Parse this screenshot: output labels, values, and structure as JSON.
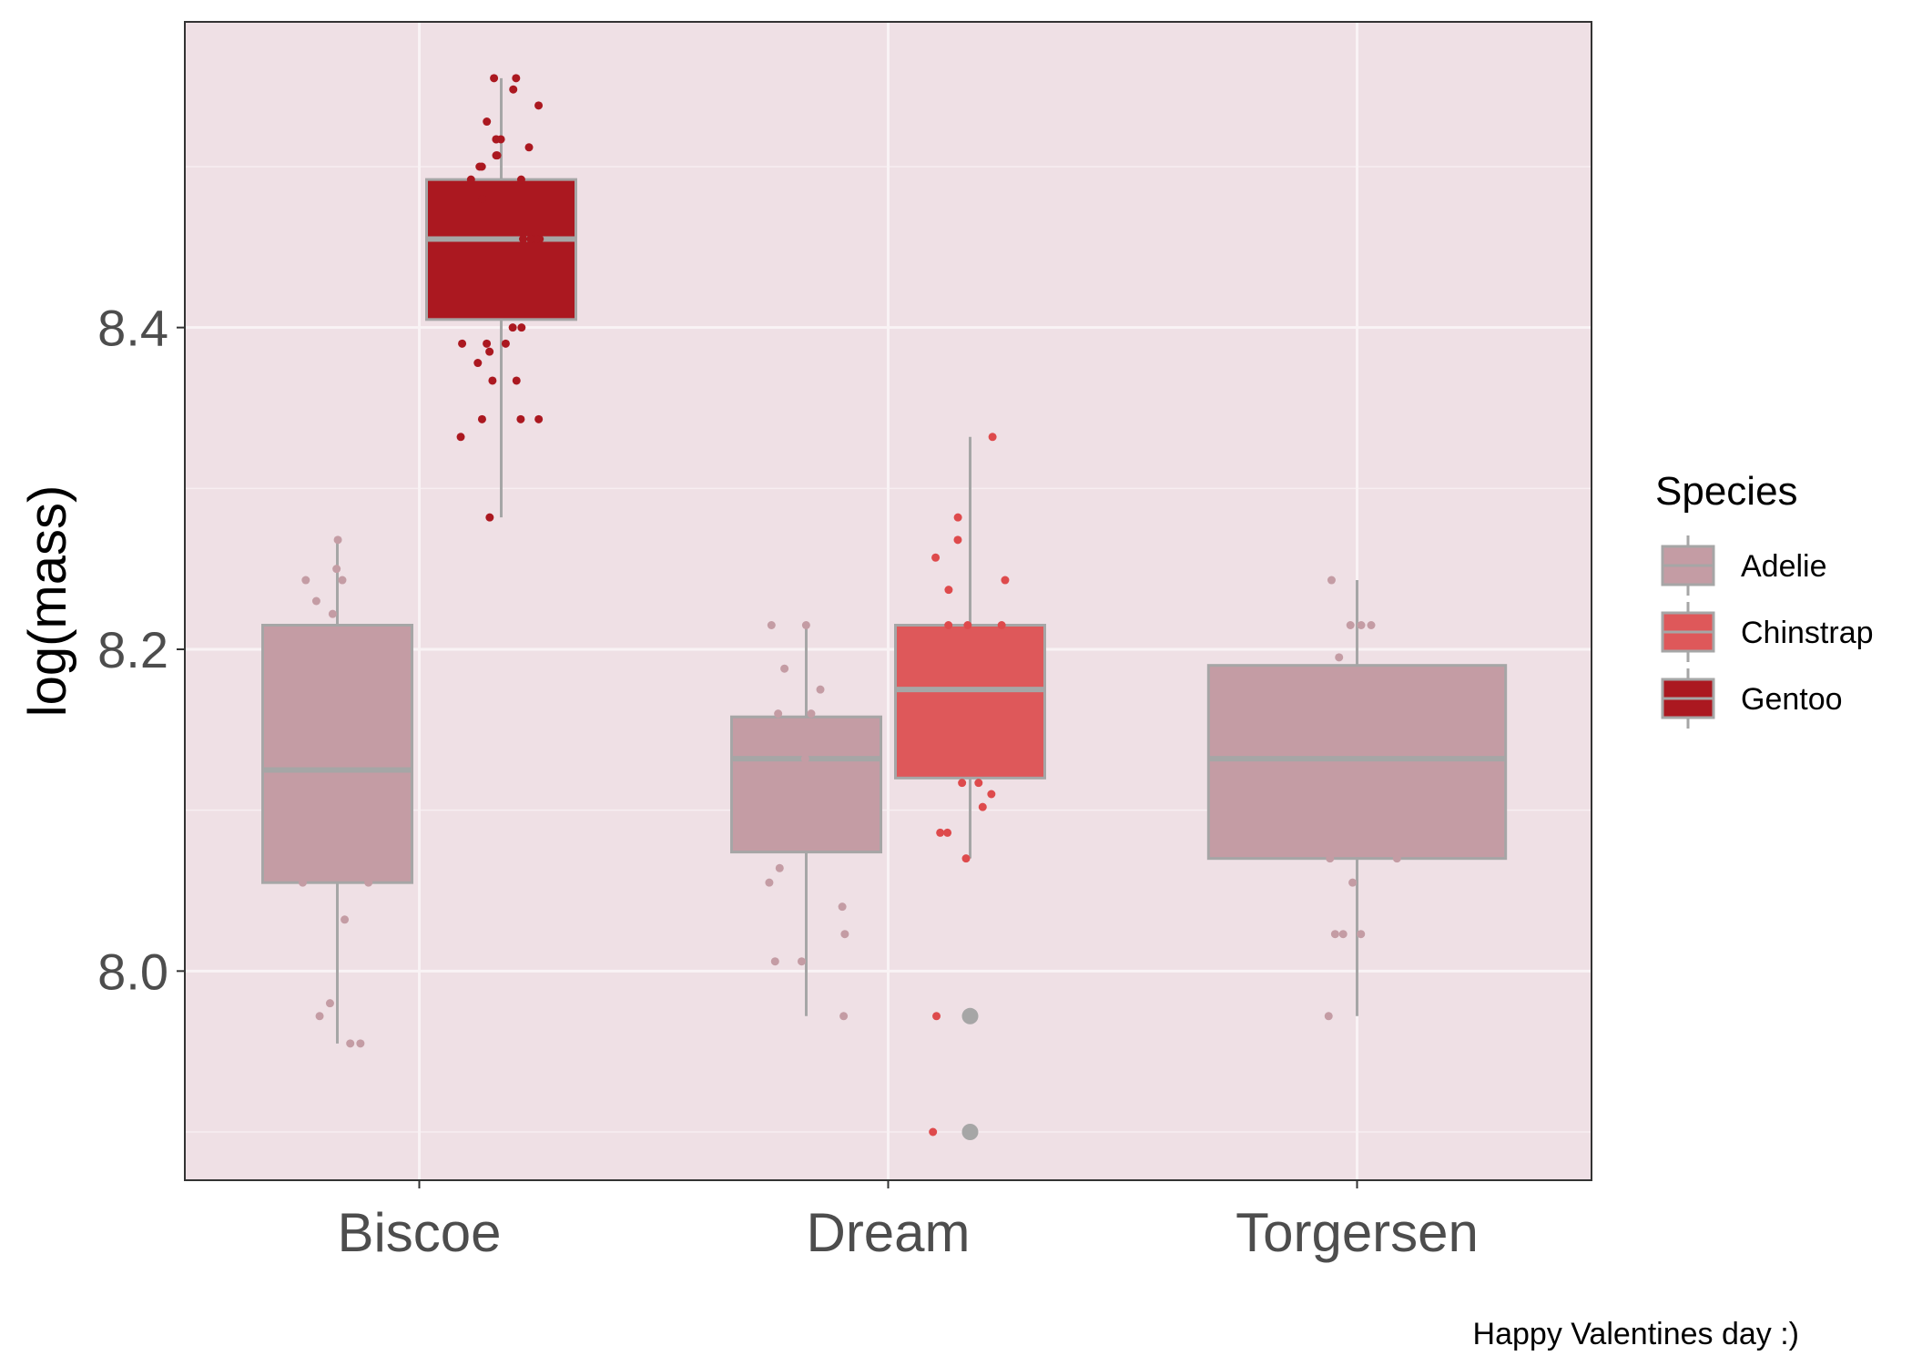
{
  "chart_data": {
    "type": "boxplot",
    "title": "",
    "xlabel": "",
    "ylabel": "log(mass)",
    "categories": [
      "Biscoe",
      "Dream",
      "Torgersen"
    ],
    "y_ticks": [
      "8.0",
      "8.2",
      "8.4"
    ],
    "y_tick_values": [
      8.0,
      8.2,
      8.4
    ],
    "ylim": [
      7.87,
      8.59
    ],
    "grid": true,
    "panel_background": "#efe0e5",
    "box_outline_color": "#a6a6a6",
    "legend": {
      "title": "Species",
      "position": "right",
      "entries": [
        "Adelie",
        "Chinstrap",
        "Gentoo"
      ]
    },
    "series": [
      {
        "name": "Adelie",
        "fill": "#c49ca4",
        "point_color": "#c49ca4",
        "boxes": [
          {
            "category": "Biscoe",
            "min": 7.955,
            "q1": 8.055,
            "median": 8.125,
            "q3": 8.215,
            "max": 8.268,
            "outliers": [],
            "points": [
              8.25,
              8.243,
              8.243,
              8.23,
              8.222,
              8.268,
              8.055,
              8.055,
              8.032,
              7.98,
              7.972,
              7.955,
              7.955
            ]
          },
          {
            "category": "Dream",
            "min": 7.972,
            "q1": 8.074,
            "median": 8.132,
            "q3": 8.158,
            "max": 8.215,
            "outliers": [],
            "points": [
              8.215,
              8.215,
              8.188,
              8.175,
              8.16,
              8.16,
              8.132,
              8.064,
              8.055,
              8.04,
              8.023,
              8.006,
              8.006,
              7.972
            ]
          },
          {
            "category": "Torgersen",
            "min": 7.972,
            "q1": 8.07,
            "median": 8.132,
            "q3": 8.19,
            "max": 8.243,
            "outliers": [],
            "points": [
              8.243,
              8.215,
              8.215,
              8.215,
              8.195,
              8.07,
              8.07,
              8.055,
              8.023,
              8.023,
              8.023,
              7.972
            ]
          }
        ]
      },
      {
        "name": "Chinstrap",
        "fill": "#de585a",
        "point_color": "#de4a4c",
        "boxes": [
          {
            "category": "Dream",
            "min": 8.07,
            "q1": 8.12,
            "median": 8.175,
            "q3": 8.215,
            "max": 8.332,
            "outliers": [
              7.972,
              7.9
            ],
            "points": [
              8.332,
              8.282,
              8.268,
              8.257,
              8.243,
              8.237,
              8.215,
              8.215,
              8.215,
              8.117,
              8.117,
              8.11,
              8.102,
              8.086,
              8.086,
              8.07,
              7.972,
              7.9
            ]
          }
        ]
      },
      {
        "name": "Gentoo",
        "fill": "#ab1820",
        "point_color": "#ab1820",
        "boxes": [
          {
            "category": "Biscoe",
            "min": 8.282,
            "q1": 8.405,
            "median": 8.455,
            "q3": 8.492,
            "max": 8.555,
            "outliers": [],
            "points": [
              8.555,
              8.555,
              8.548,
              8.538,
              8.528,
              8.517,
              8.517,
              8.517,
              8.512,
              8.507,
              8.507,
              8.5,
              8.5,
              8.492,
              8.492,
              8.48,
              8.455,
              8.455,
              8.455,
              8.455,
              8.455,
              8.4,
              8.4,
              8.39,
              8.39,
              8.39,
              8.385,
              8.378,
              8.367,
              8.367,
              8.343,
              8.343,
              8.343,
              8.332,
              8.282
            ]
          }
        ]
      }
    ],
    "caption": "Happy Valentines day :)"
  }
}
